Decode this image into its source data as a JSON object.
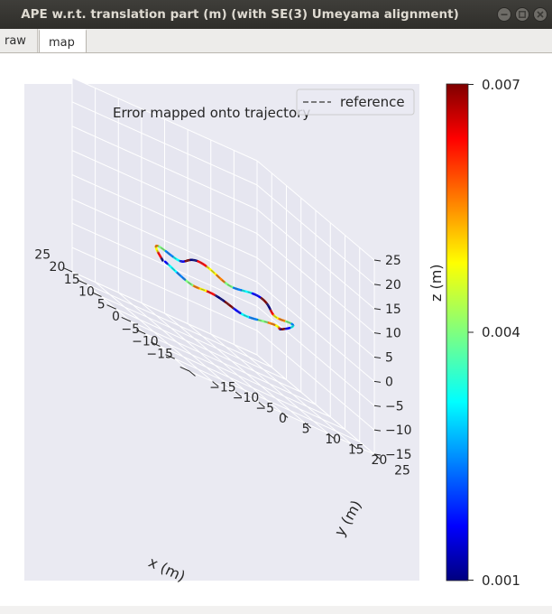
{
  "window": {
    "title": "APE w.r.t. translation part (m) (with SE(3) Umeyama alignment)",
    "controls": [
      "minimize-icon",
      "maximize-icon",
      "close-icon"
    ]
  },
  "tabs": [
    {
      "label": "raw",
      "active": false
    },
    {
      "label": "map",
      "active": true
    }
  ],
  "plot": {
    "title": "Error mapped onto trajectory",
    "legend": "reference",
    "colormap": "jet",
    "colors": {
      "panel": "#eaeaf2",
      "grid": "#ffffff",
      "text": "#262626"
    }
  },
  "colorbar": {
    "max_label": "0.007",
    "mid_label": "0.004",
    "min_label": "0.001"
  },
  "chart_data": {
    "type": "line",
    "title": "Error mapped onto trajectory",
    "xlabel": "x (m)",
    "ylabel": "y (m)",
    "zlabel": "z (m)",
    "xlim": [
      -15,
      25
    ],
    "ylim": [
      -15,
      25
    ],
    "zlim": [
      -15,
      25
    ],
    "x_ticks": [
      "−15",
      "−10",
      "−5",
      "0",
      "5",
      "10",
      "15",
      "20",
      "25"
    ],
    "y_ticks": [
      "−15",
      "−10",
      "−5",
      "0",
      "5",
      "10",
      "15",
      "20",
      "25"
    ],
    "z_ticks": [
      "−15",
      "−10",
      "−5",
      "0",
      "5",
      "10",
      "15",
      "20",
      "25"
    ],
    "series": [
      {
        "name": "reference",
        "style": "dashed",
        "shape": "wavy closed loop"
      }
    ],
    "colorbar": {
      "min": 0.001,
      "max": 0.007,
      "ticks": [
        "0.001",
        "0.004",
        "0.007"
      ]
    },
    "legend": "top-right",
    "grid": true
  }
}
